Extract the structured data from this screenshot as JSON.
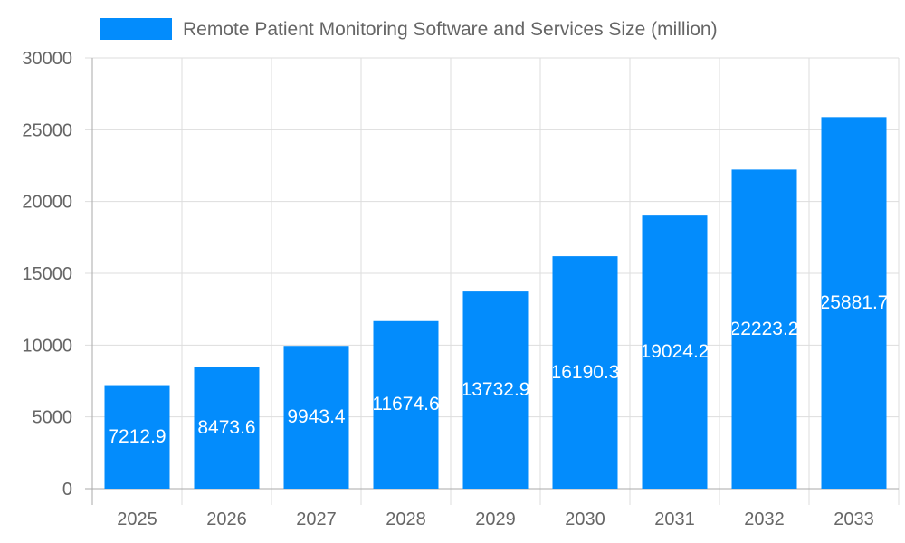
{
  "chart_data": {
    "type": "bar",
    "categories": [
      "2025",
      "2026",
      "2027",
      "2028",
      "2029",
      "2030",
      "2031",
      "2032",
      "2033"
    ],
    "series": [
      {
        "name": "Remote Patient Monitoring Software and Services Size (million)",
        "values": [
          7212.9,
          8473.6,
          9943.4,
          11674.6,
          13732.9,
          16190.3,
          19024.2,
          22223.2,
          25881.7
        ],
        "color": "#038cfc"
      }
    ],
    "ylim": [
      0,
      30000
    ],
    "yticks": [
      "0",
      "5000",
      "10000",
      "15000",
      "20000",
      "25000",
      "30000"
    ],
    "grid": true,
    "legend": "top",
    "data_labels": [
      "7212.9",
      "8473.6",
      "9943.4",
      "11674.6",
      "13732.9",
      "16190.3",
      "19024.2",
      "22223.2",
      "25881.7"
    ]
  }
}
